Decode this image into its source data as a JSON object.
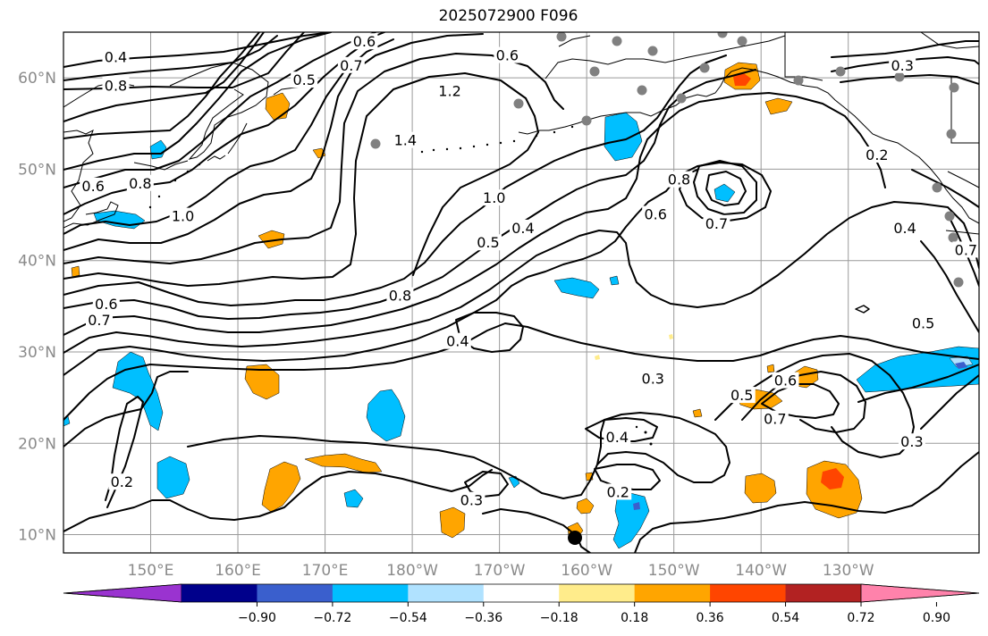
{
  "title": "2025072900 F096",
  "map": {
    "projection": "plate-carree",
    "lon_range": [
      140,
      245
    ],
    "lat_range": [
      8,
      65
    ],
    "lat_ticks": [
      {
        "lat": 60,
        "label": "60°N"
      },
      {
        "lat": 50,
        "label": "50°N"
      },
      {
        "lat": 40,
        "label": "40°N"
      },
      {
        "lat": 30,
        "label": "30°N"
      },
      {
        "lat": 20,
        "label": "20°N"
      },
      {
        "lat": 10,
        "label": "10°N"
      }
    ],
    "lon_ticks": [
      {
        "lon": 150,
        "label": "150°E"
      },
      {
        "lon": 160,
        "label": "160°E"
      },
      {
        "lon": 170,
        "label": "170°E"
      },
      {
        "lon": 180,
        "label": "180°W"
      },
      {
        "lon": 190,
        "label": "170°W"
      },
      {
        "lon": 200,
        "label": "160°W"
      },
      {
        "lon": 210,
        "label": "150°W"
      },
      {
        "lon": 220,
        "label": "140°W"
      },
      {
        "lon": 230,
        "label": "130°W"
      }
    ],
    "grid": true,
    "contour_color": "#000000",
    "coast_color": "#000000",
    "station_color": "#808080",
    "marker_color": "#000000"
  },
  "contour_labels": [
    {
      "text": "0.4",
      "lon": 146,
      "lat": 62.3
    },
    {
      "text": "0.8",
      "lon": 146,
      "lat": 59.2
    },
    {
      "text": "0.5",
      "lon": 167.6,
      "lat": 59.8
    },
    {
      "text": "0.7",
      "lon": 173,
      "lat": 61.4
    },
    {
      "text": "0.6",
      "lon": 174.5,
      "lat": 64
    },
    {
      "text": "1.2",
      "lon": 184.3,
      "lat": 58.6
    },
    {
      "text": "1.4",
      "lon": 179.2,
      "lat": 53.2
    },
    {
      "text": "0.6",
      "lon": 190.9,
      "lat": 62.5
    },
    {
      "text": "0.8",
      "lon": 148.8,
      "lat": 48.5
    },
    {
      "text": "0.6",
      "lon": 143.4,
      "lat": 48.2
    },
    {
      "text": "1.0",
      "lon": 153.7,
      "lat": 44.9
    },
    {
      "text": "1.0",
      "lon": 189.4,
      "lat": 46.9
    },
    {
      "text": "0.5",
      "lon": 188.7,
      "lat": 42
    },
    {
      "text": "0.4",
      "lon": 192.7,
      "lat": 43.6
    },
    {
      "text": "0.8",
      "lon": 178.6,
      "lat": 36.2
    },
    {
      "text": "0.6",
      "lon": 144.9,
      "lat": 35.3
    },
    {
      "text": "0.7",
      "lon": 144.1,
      "lat": 33.5
    },
    {
      "text": "0.4",
      "lon": 185.2,
      "lat": 31.2
    },
    {
      "text": "0.3",
      "lon": 207.6,
      "lat": 27.1
    },
    {
      "text": "0.8",
      "lon": 210.6,
      "lat": 48.9
    },
    {
      "text": "0.6",
      "lon": 207.9,
      "lat": 45.1
    },
    {
      "text": "0.7",
      "lon": 214.9,
      "lat": 44.1
    },
    {
      "text": "0.5",
      "lon": 217.8,
      "lat": 25.3
    },
    {
      "text": "0.6",
      "lon": 222.8,
      "lat": 26.9
    },
    {
      "text": "0.7",
      "lon": 221.6,
      "lat": 22.7
    },
    {
      "text": "0.4",
      "lon": 203.5,
      "lat": 20.7
    },
    {
      "text": "0.2",
      "lon": 203.6,
      "lat": 14.7
    },
    {
      "text": "0.3",
      "lon": 186.8,
      "lat": 13.8
    },
    {
      "text": "0.2",
      "lon": 146.7,
      "lat": 15.8
    },
    {
      "text": "0.3",
      "lon": 237.3,
      "lat": 20.2
    },
    {
      "text": "0.3",
      "lon": 236.2,
      "lat": 61.4
    },
    {
      "text": "0.2",
      "lon": 233.3,
      "lat": 51.6
    },
    {
      "text": "0.4",
      "lon": 236.5,
      "lat": 43.6
    },
    {
      "text": "0.5",
      "lon": 238.6,
      "lat": 33.2
    },
    {
      "text": "0.7",
      "lon": 243.5,
      "lat": 41.2
    }
  ],
  "colorbar": {
    "colors": [
      "#9a33d0",
      "#00008b",
      "#3a5fcd",
      "#00bfff",
      "#b0e2ff",
      "#ffffff",
      "#ffec8b",
      "#ffa500",
      "#ff4500",
      "#b22222",
      "#ff82ab"
    ],
    "tick_labels": [
      "−0.90",
      "−0.72",
      "−0.54",
      "−0.36",
      "−0.18",
      "0.18",
      "0.36",
      "0.54",
      "0.72",
      "0.90"
    ]
  }
}
